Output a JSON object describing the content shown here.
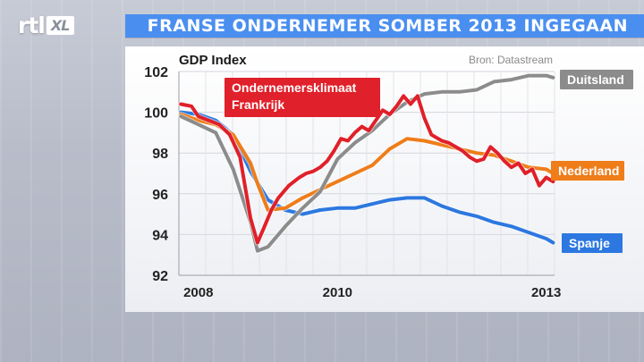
{
  "header": {
    "logo_rtl": "rtl",
    "logo_xl": "XL",
    "title": "FRANSE ONDERNEMER SOMBER 2013 INGEGAAN"
  },
  "colors": {
    "title_bar": "#4a8ff0",
    "duitsland": "#8c8c8c",
    "nederland": "#ee7d1a",
    "spanje": "#2d78e0",
    "frankrijk": "#e0202a"
  },
  "chart_data": {
    "type": "line",
    "title": "GDP Index",
    "source": "Bron: Datastream",
    "xlim": [
      2007.72,
      2013.12
    ],
    "ylim": [
      92,
      102
    ],
    "xticks": [
      {
        "value": 2008,
        "label": "2008"
      },
      {
        "value": 2010,
        "label": "2010"
      },
      {
        "value": 2013,
        "label": "2013"
      }
    ],
    "yticks": [
      92,
      94,
      96,
      98,
      100,
      102
    ],
    "grid": true,
    "series": [
      {
        "name": "Duitsland",
        "color": "#8c8c8c",
        "label_style": "box",
        "x": [
          2007.75,
          2008.0,
          2008.25,
          2008.5,
          2008.75,
          2008.85,
          2009.0,
          2009.25,
          2009.5,
          2009.75,
          2010.0,
          2010.25,
          2010.5,
          2010.75,
          2011.0,
          2011.25,
          2011.5,
          2011.75,
          2012.0,
          2012.25,
          2012.5,
          2012.75,
          2013.0,
          2013.1
        ],
        "y": [
          99.8,
          99.4,
          99.0,
          97.2,
          94.6,
          93.2,
          93.4,
          94.4,
          95.3,
          96.1,
          97.7,
          98.5,
          99.1,
          99.9,
          100.5,
          100.9,
          101.0,
          101.0,
          101.1,
          101.5,
          101.6,
          101.8,
          101.8,
          101.7
        ]
      },
      {
        "name": "Nederland",
        "color": "#ee7d1a",
        "label_style": "box",
        "x": [
          2007.75,
          2008.0,
          2008.25,
          2008.5,
          2008.75,
          2008.85,
          2009.0,
          2009.25,
          2009.5,
          2009.75,
          2010.0,
          2010.25,
          2010.5,
          2010.75,
          2011.0,
          2011.25,
          2011.5,
          2011.75,
          2012.0,
          2012.25,
          2012.5,
          2012.75,
          2013.0,
          2013.1
        ],
        "y": [
          99.9,
          99.6,
          99.4,
          98.9,
          97.5,
          96.5,
          95.2,
          95.3,
          95.8,
          96.2,
          96.6,
          97.0,
          97.4,
          98.2,
          98.7,
          98.6,
          98.4,
          98.2,
          98.0,
          97.9,
          97.6,
          97.3,
          97.2,
          97.0
        ]
      },
      {
        "name": "Spanje",
        "color": "#2d78e0",
        "label_style": "box",
        "x": [
          2007.75,
          2008.0,
          2008.25,
          2008.5,
          2008.75,
          2009.0,
          2009.25,
          2009.5,
          2009.75,
          2010.0,
          2010.25,
          2010.5,
          2010.75,
          2011.0,
          2011.25,
          2011.5,
          2011.75,
          2012.0,
          2012.25,
          2012.5,
          2012.75,
          2013.0,
          2013.1
        ],
        "y": [
          100.0,
          99.9,
          99.6,
          98.9,
          97.1,
          95.7,
          95.2,
          95.0,
          95.2,
          95.3,
          95.3,
          95.5,
          95.7,
          95.8,
          95.8,
          95.4,
          95.1,
          94.9,
          94.6,
          94.4,
          94.1,
          93.8,
          93.6
        ]
      },
      {
        "name": "Ondernemersklimaat Frankrijk",
        "color": "#e0202a",
        "label_style": "box-multiline",
        "label_lines": [
          "Ondernemersklimaat",
          "Frankrijk"
        ],
        "x": [
          2007.75,
          2007.9,
          2008.0,
          2008.15,
          2008.3,
          2008.45,
          2008.6,
          2008.75,
          2008.85,
          2008.95,
          2009.05,
          2009.15,
          2009.3,
          2009.45,
          2009.55,
          2009.65,
          2009.75,
          2009.85,
          2009.95,
          2010.05,
          2010.15,
          2010.25,
          2010.35,
          2010.45,
          2010.55,
          2010.65,
          2010.75,
          2010.85,
          2010.95,
          2011.05,
          2011.15,
          2011.25,
          2011.35,
          2011.5,
          2011.6,
          2011.7,
          2011.8,
          2011.9,
          2012.0,
          2012.1,
          2012.2,
          2012.3,
          2012.4,
          2012.5,
          2012.6,
          2012.7,
          2012.8,
          2012.9,
          2013.0,
          2013.1
        ],
        "y": [
          100.4,
          100.3,
          99.8,
          99.6,
          99.4,
          98.9,
          97.8,
          94.8,
          93.6,
          94.4,
          95.2,
          95.8,
          96.4,
          96.8,
          97.0,
          97.1,
          97.3,
          97.6,
          98.1,
          98.7,
          98.6,
          99.0,
          99.3,
          99.1,
          99.6,
          100.1,
          99.9,
          100.3,
          100.8,
          100.4,
          100.8,
          99.7,
          98.9,
          98.6,
          98.5,
          98.3,
          98.1,
          97.8,
          97.6,
          97.7,
          98.3,
          98.0,
          97.6,
          97.3,
          97.5,
          97.0,
          97.2,
          96.4,
          96.8,
          96.6
        ]
      }
    ]
  }
}
